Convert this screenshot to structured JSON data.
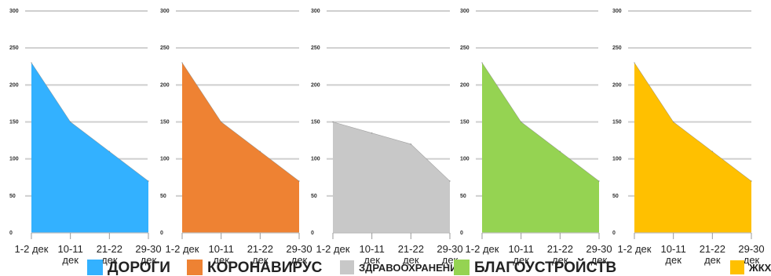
{
  "chart_data": [
    {
      "type": "area",
      "categories": [
        "1-2 дек",
        "10-11 дек",
        "21-22 дек",
        "29-30 дек"
      ],
      "values": [
        230,
        150,
        110,
        70
      ],
      "ylim": [
        0,
        300
      ],
      "yticks": [
        "0",
        "50",
        "100",
        "150",
        "200",
        "250",
        "300"
      ],
      "grid": true,
      "color": "#33b1ff"
    },
    {
      "type": "area",
      "categories": [
        "1-2 дек",
        "10-11 дек",
        "21-22 дек",
        "29-30 дек"
      ],
      "values": [
        230,
        150,
        110,
        70
      ],
      "ylim": [
        0,
        300
      ],
      "yticks": [
        "0",
        "50",
        "100",
        "150",
        "200",
        "250",
        "300"
      ],
      "grid": true,
      "color": "#ee8233"
    },
    {
      "type": "area",
      "categories": [
        "1-2 дек",
        "10-11 дек",
        "21-22 дек",
        "29-30 дек"
      ],
      "values": [
        150,
        135,
        120,
        70
      ],
      "ylim": [
        0,
        300
      ],
      "yticks": [
        "0",
        "50",
        "100",
        "150",
        "200",
        "250",
        "300"
      ],
      "grid": true,
      "color": "#c8c8c8"
    },
    {
      "type": "area",
      "categories": [
        "1-2 дек",
        "10-11 дек",
        "21-22 дек",
        "29-30 дек"
      ],
      "values": [
        230,
        150,
        110,
        70
      ],
      "ylim": [
        0,
        300
      ],
      "yticks": [
        "0",
        "50",
        "100",
        "150",
        "200",
        "250",
        "300"
      ],
      "grid": true,
      "color": "#95d352"
    },
    {
      "type": "area",
      "categories": [
        "1-2 дек",
        "10-11 дек",
        "21-22 дек",
        "29-30 дек"
      ],
      "values": [
        230,
        150,
        110,
        70
      ],
      "ylim": [
        0,
        300
      ],
      "yticks": [
        "0",
        "50",
        "100",
        "150",
        "200",
        "250",
        "300"
      ],
      "grid": true,
      "color": "#ffc000"
    }
  ],
  "legend": [
    {
      "label": "ДОРОГИ",
      "color": "#33b1ff"
    },
    {
      "label": "КОРОНАВИРУС",
      "color": "#ee8233"
    },
    {
      "label": "ЗДРАВООХРАНЕНИЕ",
      "color": "#c8c8c8"
    },
    {
      "label": "БЛАГОУСТРОЙСТВ",
      "color": "#95d352"
    },
    {
      "label": "ЖКХ",
      "color": "#ffc000"
    }
  ]
}
